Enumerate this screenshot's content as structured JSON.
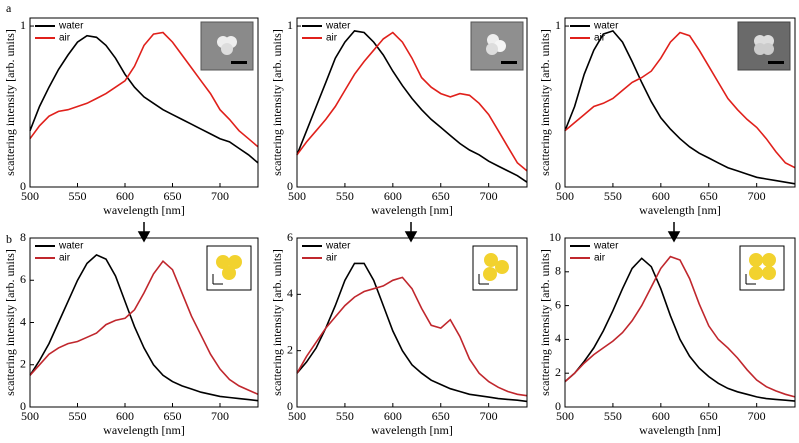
{
  "panel_labels": [
    "a",
    "b"
  ],
  "chart_data": [
    {
      "type": "line",
      "xlabel": "wavelength [nm]",
      "ylabel": "scattering intensity [arb. units]",
      "x": [
        500,
        510,
        520,
        530,
        540,
        550,
        560,
        570,
        580,
        590,
        600,
        610,
        620,
        630,
        640,
        650,
        660,
        670,
        680,
        690,
        700,
        710,
        720,
        730,
        740
      ],
      "xlim": [
        500,
        740
      ],
      "xticks": [
        500,
        550,
        600,
        650,
        700
      ],
      "ylim": [
        0,
        1.05
      ],
      "yticks": [
        0,
        1
      ],
      "legend": "upper left",
      "series": [
        {
          "name": "water",
          "color": "#000000",
          "values": [
            0.35,
            0.5,
            0.62,
            0.73,
            0.82,
            0.9,
            0.94,
            0.93,
            0.88,
            0.8,
            0.7,
            0.62,
            0.56,
            0.52,
            0.48,
            0.45,
            0.42,
            0.39,
            0.36,
            0.33,
            0.3,
            0.28,
            0.24,
            0.2,
            0.15
          ]
        },
        {
          "name": "air",
          "color": "#e0201b",
          "values": [
            0.3,
            0.38,
            0.44,
            0.47,
            0.48,
            0.5,
            0.52,
            0.55,
            0.58,
            0.62,
            0.66,
            0.75,
            0.88,
            0.95,
            0.96,
            0.9,
            0.82,
            0.74,
            0.66,
            0.58,
            0.48,
            0.42,
            0.35,
            0.3,
            0.25
          ]
        }
      ]
    },
    {
      "type": "line",
      "xlabel": "wavelength [nm]",
      "ylabel": "scattering intensity [arb. units]",
      "x": [
        500,
        510,
        520,
        530,
        540,
        550,
        560,
        570,
        580,
        590,
        600,
        610,
        620,
        630,
        640,
        650,
        660,
        670,
        680,
        690,
        700,
        710,
        720,
        730,
        740
      ],
      "xlim": [
        500,
        740
      ],
      "xticks": [
        500,
        550,
        600,
        650,
        700
      ],
      "ylim": [
        0,
        1.05
      ],
      "yticks": [
        0,
        1
      ],
      "legend": "upper left",
      "series": [
        {
          "name": "water",
          "color": "#000000",
          "values": [
            0.2,
            0.35,
            0.5,
            0.65,
            0.8,
            0.9,
            0.97,
            0.96,
            0.9,
            0.82,
            0.72,
            0.63,
            0.55,
            0.48,
            0.42,
            0.37,
            0.32,
            0.27,
            0.23,
            0.2,
            0.16,
            0.13,
            0.1,
            0.07,
            0.03
          ]
        },
        {
          "name": "air",
          "color": "#e0201b",
          "values": [
            0.2,
            0.28,
            0.35,
            0.42,
            0.5,
            0.6,
            0.7,
            0.78,
            0.85,
            0.92,
            0.96,
            0.9,
            0.8,
            0.68,
            0.62,
            0.58,
            0.56,
            0.58,
            0.57,
            0.52,
            0.45,
            0.35,
            0.25,
            0.15,
            0.1
          ]
        }
      ]
    },
    {
      "type": "line",
      "xlabel": "wavelength [nm]",
      "ylabel": "scattering intensity [arb. units]",
      "x": [
        500,
        510,
        520,
        530,
        540,
        550,
        560,
        570,
        580,
        590,
        600,
        610,
        620,
        630,
        640,
        650,
        660,
        670,
        680,
        690,
        700,
        710,
        720,
        730,
        740
      ],
      "xlim": [
        500,
        740
      ],
      "xticks": [
        500,
        550,
        600,
        650,
        700
      ],
      "ylim": [
        0,
        1.05
      ],
      "yticks": [
        0,
        1
      ],
      "legend": "upper left",
      "series": [
        {
          "name": "water",
          "color": "#000000",
          "values": [
            0.35,
            0.5,
            0.7,
            0.85,
            0.95,
            0.97,
            0.9,
            0.78,
            0.65,
            0.53,
            0.43,
            0.36,
            0.3,
            0.25,
            0.21,
            0.18,
            0.15,
            0.12,
            0.1,
            0.08,
            0.06,
            0.05,
            0.04,
            0.03,
            0.02
          ]
        },
        {
          "name": "air",
          "color": "#e0201b",
          "values": [
            0.35,
            0.4,
            0.45,
            0.5,
            0.52,
            0.55,
            0.6,
            0.65,
            0.68,
            0.72,
            0.8,
            0.9,
            0.96,
            0.94,
            0.85,
            0.75,
            0.65,
            0.55,
            0.48,
            0.42,
            0.37,
            0.3,
            0.22,
            0.15,
            0.12
          ]
        }
      ]
    },
    {
      "type": "line",
      "xlabel": "wavelength [nm]",
      "ylabel": "scattering intensity [arb. units]",
      "x": [
        500,
        510,
        520,
        530,
        540,
        550,
        560,
        570,
        580,
        590,
        600,
        610,
        620,
        630,
        640,
        650,
        660,
        670,
        680,
        690,
        700,
        710,
        720,
        730,
        740
      ],
      "xlim": [
        500,
        740
      ],
      "xticks": [
        500,
        550,
        600,
        650,
        700
      ],
      "ylim": [
        0,
        8
      ],
      "yticks": [
        0,
        2,
        4,
        6,
        8
      ],
      "legend": "upper left",
      "series": [
        {
          "name": "water",
          "color": "#000000",
          "values": [
            1.5,
            2.2,
            3.0,
            4.0,
            5.0,
            6.0,
            6.8,
            7.2,
            7.0,
            6.2,
            5.0,
            3.8,
            2.8,
            2.0,
            1.5,
            1.2,
            1.0,
            0.85,
            0.7,
            0.6,
            0.5,
            0.45,
            0.4,
            0.35,
            0.3
          ]
        },
        {
          "name": "air",
          "color": "#c0272d",
          "values": [
            1.5,
            2.0,
            2.5,
            2.8,
            3.0,
            3.1,
            3.3,
            3.5,
            3.9,
            4.1,
            4.2,
            4.6,
            5.4,
            6.3,
            6.9,
            6.5,
            5.4,
            4.3,
            3.4,
            2.5,
            1.8,
            1.3,
            1.0,
            0.8,
            0.6
          ]
        }
      ]
    },
    {
      "type": "line",
      "xlabel": "wavelength [nm]",
      "ylabel": "scattering intensity [arb. units]",
      "x": [
        500,
        510,
        520,
        530,
        540,
        550,
        560,
        570,
        580,
        590,
        600,
        610,
        620,
        630,
        640,
        650,
        660,
        670,
        680,
        690,
        700,
        710,
        720,
        730,
        740
      ],
      "xlim": [
        500,
        740
      ],
      "xticks": [
        500,
        550,
        600,
        650,
        700
      ],
      "ylim": [
        0,
        6
      ],
      "yticks": [
        0,
        2,
        4,
        6
      ],
      "legend": "upper left",
      "series": [
        {
          "name": "water",
          "color": "#000000",
          "values": [
            1.2,
            1.6,
            2.1,
            2.8,
            3.6,
            4.5,
            5.1,
            5.1,
            4.5,
            3.6,
            2.7,
            2.0,
            1.5,
            1.2,
            0.95,
            0.8,
            0.65,
            0.55,
            0.45,
            0.4,
            0.35,
            0.3,
            0.27,
            0.24,
            0.2
          ]
        },
        {
          "name": "air",
          "color": "#c0272d",
          "values": [
            1.2,
            1.8,
            2.3,
            2.8,
            3.2,
            3.6,
            3.9,
            4.1,
            4.2,
            4.3,
            4.5,
            4.6,
            4.2,
            3.5,
            2.9,
            2.8,
            3.1,
            2.5,
            1.7,
            1.2,
            0.9,
            0.7,
            0.55,
            0.45,
            0.4
          ]
        }
      ]
    },
    {
      "type": "line",
      "xlabel": "wavelength [nm]",
      "ylabel": "scattering intensity [arb. units]",
      "x": [
        500,
        510,
        520,
        530,
        540,
        550,
        560,
        570,
        580,
        590,
        600,
        610,
        620,
        630,
        640,
        650,
        660,
        670,
        680,
        690,
        700,
        710,
        720,
        730,
        740
      ],
      "xlim": [
        500,
        740
      ],
      "xticks": [
        500,
        550,
        600,
        650,
        700
      ],
      "ylim": [
        0,
        10
      ],
      "yticks": [
        0,
        2,
        4,
        6,
        8,
        10
      ],
      "legend": "upper left",
      "series": [
        {
          "name": "water",
          "color": "#000000",
          "values": [
            1.5,
            2.0,
            2.7,
            3.5,
            4.5,
            5.7,
            7.0,
            8.2,
            8.8,
            8.3,
            7.0,
            5.4,
            4.0,
            3.0,
            2.3,
            1.8,
            1.4,
            1.1,
            0.9,
            0.75,
            0.6,
            0.5,
            0.45,
            0.4,
            0.35
          ]
        },
        {
          "name": "air",
          "color": "#c0272d",
          "values": [
            1.5,
            2.0,
            2.6,
            3.1,
            3.5,
            3.9,
            4.4,
            5.1,
            6.0,
            7.1,
            8.2,
            8.9,
            8.7,
            7.6,
            6.1,
            4.8,
            4.0,
            3.5,
            2.9,
            2.2,
            1.6,
            1.2,
            0.95,
            0.75,
            0.6
          ]
        }
      ]
    }
  ]
}
